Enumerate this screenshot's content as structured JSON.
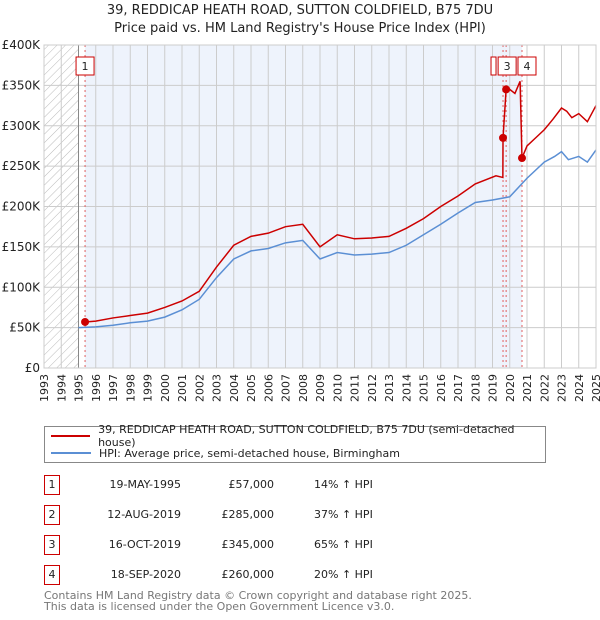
{
  "title": "39, REDDICAP HEATH ROAD, SUTTON COLDFIELD, B75 7DU",
  "subtitle": "Price paid vs. HM Land Registry's House Price Index (HPI)",
  "chart_data": {
    "type": "line",
    "xlim": [
      1993,
      2025
    ],
    "ylim": [
      0,
      400000
    ],
    "x_ticks": [
      "1993",
      "1994",
      "1995",
      "1996",
      "1997",
      "1998",
      "1999",
      "2000",
      "2001",
      "2002",
      "2003",
      "2004",
      "2005",
      "2006",
      "2007",
      "2008",
      "2009",
      "2010",
      "2011",
      "2012",
      "2013",
      "2014",
      "2015",
      "2016",
      "2017",
      "2018",
      "2019",
      "2020",
      "2021",
      "2022",
      "2023",
      "2024",
      "2025"
    ],
    "y_ticks": [
      {
        "v": 0,
        "label": "£0"
      },
      {
        "v": 50000,
        "label": "£50K"
      },
      {
        "v": 100000,
        "label": "£100K"
      },
      {
        "v": 150000,
        "label": "£150K"
      },
      {
        "v": 200000,
        "label": "£200K"
      },
      {
        "v": 250000,
        "label": "£250K"
      },
      {
        "v": 300000,
        "label": "£300K"
      },
      {
        "v": 350000,
        "label": "£350K"
      },
      {
        "v": 400000,
        "label": "£400K"
      }
    ],
    "series": [
      {
        "name": "39, REDDICAP HEATH ROAD, SUTTON COLDFIELD, B75 7DU (semi-detached house)",
        "color": "#cc0000",
        "x": [
          1995.38,
          1996,
          1997,
          1998,
          1999,
          2000,
          2001,
          2002,
          2003,
          2004,
          2005,
          2006,
          2007,
          2008,
          2009,
          2010,
          2011,
          2012,
          2013,
          2014,
          2015,
          2016,
          2017,
          2018,
          2019.2,
          2019.6,
          2019.61,
          2019.79,
          2020.0,
          2020.3,
          2020.6,
          2020.71,
          2021,
          2021.5,
          2022,
          2022.5,
          2023,
          2023.3,
          2023.6,
          2024,
          2024.5,
          2025
        ],
        "y": [
          57000,
          58000,
          62000,
          65000,
          68000,
          75000,
          83000,
          95000,
          125000,
          152000,
          163000,
          167000,
          175000,
          178000,
          150000,
          165000,
          160000,
          161000,
          163000,
          173000,
          185000,
          200000,
          213000,
          228000,
          238000,
          236000,
          285000,
          345000,
          345000,
          340000,
          355000,
          260000,
          275000,
          285000,
          295000,
          308000,
          322000,
          318000,
          310000,
          315000,
          305000,
          325000
        ]
      },
      {
        "name": "HPI: Average price, semi-detached house, Birmingham",
        "color": "#5b8fd4",
        "x": [
          1995,
          1996,
          1997,
          1998,
          1999,
          2000,
          2001,
          2002,
          2003,
          2004,
          2005,
          2006,
          2007,
          2008,
          2009,
          2010,
          2011,
          2012,
          2013,
          2014,
          2015,
          2016,
          2017,
          2018,
          2019,
          2020,
          2021,
          2022,
          2022.6,
          2023,
          2023.4,
          2024,
          2024.5,
          2025
        ],
        "y": [
          50000,
          51000,
          53000,
          56000,
          58000,
          63000,
          72000,
          85000,
          112000,
          135000,
          145000,
          148000,
          155000,
          158000,
          135000,
          143000,
          140000,
          141000,
          143000,
          152000,
          165000,
          178000,
          192000,
          205000,
          208000,
          212000,
          235000,
          255000,
          262000,
          268000,
          258000,
          262000,
          255000,
          270000
        ]
      }
    ],
    "hatch_range": [
      1993,
      1995
    ],
    "shade_range": [
      1995.38,
      2020.71
    ],
    "markers": [
      {
        "label": "1",
        "x": 1995.38,
        "y": 57000
      },
      {
        "label": "2",
        "x": 2019.61,
        "y": 285000
      },
      {
        "label": "3",
        "x": 2019.79,
        "y": 345000
      },
      {
        "label": "4",
        "x": 2020.71,
        "y": 260000
      }
    ]
  },
  "legend": [
    {
      "label": "39, REDDICAP HEATH ROAD, SUTTON COLDFIELD, B75 7DU (semi-detached house)",
      "color": "#cc0000"
    },
    {
      "label": "HPI: Average price, semi-detached house, Birmingham",
      "color": "#5b8fd4"
    }
  ],
  "sales": [
    {
      "num": "1",
      "date": "19-MAY-1995",
      "price": "£57,000",
      "hpi": "14% ↑ HPI"
    },
    {
      "num": "2",
      "date": "12-AUG-2019",
      "price": "£285,000",
      "hpi": "37% ↑ HPI"
    },
    {
      "num": "3",
      "date": "16-OCT-2019",
      "price": "£345,000",
      "hpi": "65% ↑ HPI"
    },
    {
      "num": "4",
      "date": "18-SEP-2020",
      "price": "£260,000",
      "hpi": "20% ↑ HPI"
    }
  ],
  "footer": [
    "Contains HM Land Registry data © Crown copyright and database right 2025.",
    "This data is licensed under the Open Government Licence v3.0."
  ]
}
